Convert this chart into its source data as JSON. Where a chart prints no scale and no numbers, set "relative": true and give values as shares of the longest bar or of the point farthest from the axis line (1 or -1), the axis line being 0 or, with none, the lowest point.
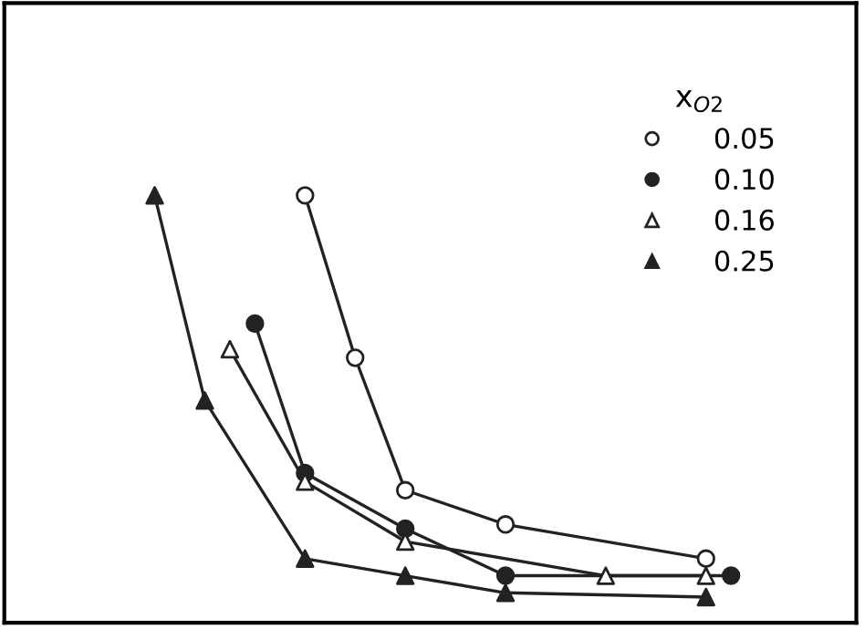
{
  "chart_data": {
    "type": "line",
    "relative": true,
    "legend_title": "x$_{O2}$",
    "legend": "top right",
    "grid": false,
    "line_style": "solid",
    "categories": [
      null,
      null,
      null,
      null,
      null,
      null,
      null,
      null,
      null,
      null,
      null,
      null,
      null,
      null,
      null,
      null,
      null,
      null,
      null,
      null,
      null,
      null,
      null,
      null
    ],
    "series": [
      {
        "name": "0.05",
        "color": "#ffffff",
        "marker": "circle",
        "values": [
          null,
          null,
          null,
          null,
          null,
          null,
          1.0,
          null,
          0.62,
          null,
          0.31,
          null,
          null,
          null,
          0.23,
          null,
          null,
          null,
          null,
          null,
          null,
          null,
          0.15,
          null
        ]
      },
      {
        "name": "0.10",
        "color": "#222222",
        "marker": "circle",
        "values": [
          null,
          null,
          null,
          null,
          0.7,
          null,
          0.35,
          null,
          null,
          null,
          0.22,
          null,
          null,
          null,
          0.11,
          null,
          null,
          null,
          null,
          null,
          null,
          null,
          null,
          0.11
        ]
      },
      {
        "name": "0.16",
        "color": "#ffffff",
        "marker": "triangle",
        "values": [
          null,
          null,
          null,
          0.64,
          null,
          null,
          0.33,
          null,
          null,
          null,
          0.19,
          null,
          null,
          null,
          null,
          null,
          null,
          null,
          0.11,
          null,
          null,
          null,
          0.11,
          null
        ]
      },
      {
        "name": "0.25",
        "color": "#222222",
        "marker": "triangle",
        "values": [
          1.0,
          null,
          0.52,
          null,
          null,
          null,
          0.15,
          null,
          null,
          null,
          0.11,
          null,
          null,
          null,
          0.07,
          null,
          null,
          null,
          null,
          null,
          null,
          null,
          0.06,
          null
        ]
      }
    ]
  }
}
